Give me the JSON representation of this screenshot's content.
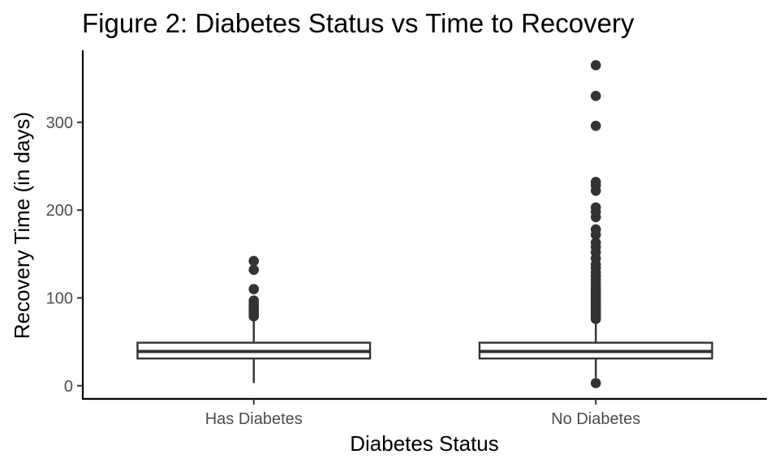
{
  "chart_data": {
    "type": "box",
    "title": "Figure 2: Diabetes Status vs Time to Recovery",
    "xlabel": "Diabetes Status",
    "ylabel": "Recovery Time (in days)",
    "categories": [
      "Has Diabetes",
      "No Diabetes"
    ],
    "ylim": [
      -15,
      382
    ],
    "yticks": [
      0,
      100,
      200,
      300
    ],
    "grid": false,
    "legend": "none",
    "boxes": [
      {
        "category": "Has Diabetes",
        "whisker_low": 3,
        "q1": 31,
        "median": 39,
        "q3": 49,
        "whisker_high": 75,
        "outliers": [
          79,
          82,
          85,
          88,
          91,
          94,
          97,
          110,
          132,
          142
        ]
      },
      {
        "category": "No Diabetes",
        "whisker_low": 9,
        "q1": 31,
        "median": 39,
        "q3": 49,
        "whisker_high": 75,
        "outliers": [
          3,
          76,
          78,
          80,
          82,
          84,
          86,
          88,
          90,
          92,
          95,
          98,
          101,
          104,
          107,
          110,
          113,
          117,
          121,
          125,
          129,
          134,
          138,
          145,
          152,
          158,
          163,
          172,
          178,
          192,
          198,
          203,
          222,
          228,
          232,
          296,
          330,
          365
        ]
      }
    ]
  }
}
